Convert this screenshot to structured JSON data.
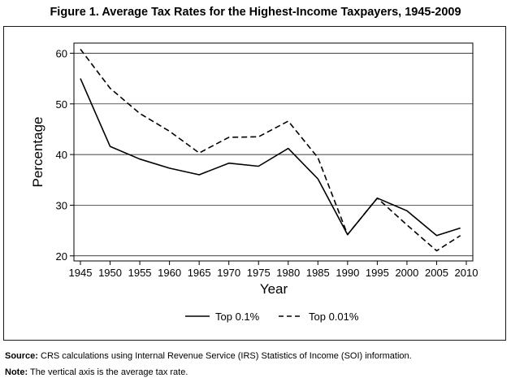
{
  "figure": {
    "title": "Figure 1. Average Tax Rates for the Highest-Income Taxpayers, 1945-2009",
    "source_label": "Source:",
    "source_text": "CRS calculations using Internal Revenue Service (IRS) Statistics of Income (SOI) information.",
    "note_label": "Note:",
    "note_text": "The vertical axis is the average tax rate."
  },
  "chart_data": {
    "type": "line",
    "title": "Figure 1. Average Tax Rates for the Highest-Income Taxpayers, 1945-2009",
    "xlabel": "Year",
    "ylabel": "Percentage",
    "x": [
      1945,
      1950,
      1955,
      1960,
      1965,
      1970,
      1975,
      1980,
      1985,
      1990,
      1995,
      2000,
      2005,
      2009
    ],
    "x_ticks": [
      1945,
      1950,
      1955,
      1960,
      1965,
      1970,
      1975,
      1980,
      1985,
      1990,
      1995,
      2000,
      2005,
      2010
    ],
    "y_ticks": [
      20,
      30,
      40,
      50,
      60
    ],
    "xlim": [
      1945,
      2010
    ],
    "ylim": [
      19,
      62
    ],
    "grid": "horizontal",
    "legend_position": "bottom",
    "series": [
      {
        "name": "Top 0.1%",
        "style": "solid",
        "color": "#000000",
        "values": [
          55.0,
          41.6,
          39.1,
          37.3,
          36.0,
          38.3,
          37.7,
          41.2,
          35.2,
          24.2,
          31.4,
          28.9,
          24.0,
          25.5
        ]
      },
      {
        "name": "Top 0.01%",
        "style": "dashed",
        "color": "#000000",
        "values": [
          60.8,
          53.1,
          48.1,
          44.6,
          40.3,
          43.4,
          43.5,
          46.6,
          39.4,
          24.2,
          31.4,
          26.1,
          21.0,
          24.0
        ]
      }
    ]
  }
}
